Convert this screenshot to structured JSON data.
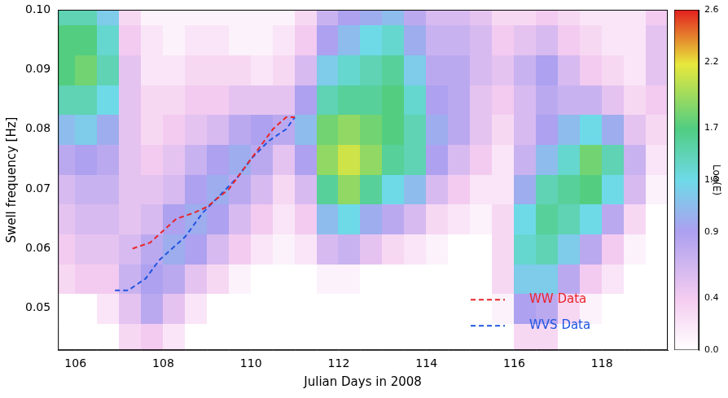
{
  "chart_data": {
    "type": "heatmap",
    "x_label": "Julian Days in 2008",
    "y_label": "Swell frequency [Hz]",
    "xlim": [
      105.6,
      119.5
    ],
    "xticks": [
      106,
      108,
      110,
      112,
      114,
      116,
      118
    ],
    "ylim": [
      0.043,
      0.1
    ],
    "yticks": [
      0.05,
      0.06,
      0.07,
      0.08,
      0.09,
      {
        "value": 0.1,
        "label": "0.10"
      }
    ],
    "grid": false,
    "legend": "lower right",
    "heatmap": {
      "x": [
        105.75,
        106.25,
        106.75,
        107.25,
        107.75,
        108.25,
        108.75,
        109.25,
        109.75,
        110.25,
        110.75,
        111.25,
        111.75,
        112.25,
        112.75,
        113.25,
        113.75,
        114.25,
        114.75,
        115.25,
        115.75,
        116.25,
        116.75,
        117.25,
        117.75,
        118.25,
        118.75,
        119.25
      ],
      "y": [
        0.045,
        0.05,
        0.055,
        0.06,
        0.065,
        0.07,
        0.075,
        0.08,
        0.085,
        0.09,
        0.095,
        0.1
      ],
      "cells": [
        [
          0,
          0,
          0,
          0.3,
          0.4,
          0.2,
          0,
          0,
          0,
          0,
          0,
          0,
          0,
          0,
          0,
          0,
          0,
          0,
          0,
          0,
          0,
          0.3,
          0.3,
          0,
          0,
          0,
          0,
          0
        ],
        [
          0,
          0,
          0.2,
          0.5,
          0.8,
          0.5,
          0.2,
          0,
          0,
          0,
          0,
          0,
          0,
          0,
          0,
          0,
          0,
          0,
          0,
          0,
          0.1,
          0.9,
          0.8,
          0.3,
          0.1,
          0,
          0,
          0
        ],
        [
          0.3,
          0.4,
          0.4,
          0.7,
          0.9,
          0.8,
          0.5,
          0.3,
          0.1,
          0,
          0,
          0,
          0.1,
          0.1,
          0,
          0,
          0,
          0,
          0,
          0,
          0.3,
          1.2,
          1.2,
          0.8,
          0.4,
          0.2,
          0,
          0
        ],
        [
          0.4,
          0.5,
          0.5,
          0.6,
          0.8,
          1.0,
          0.9,
          0.6,
          0.4,
          0.2,
          0.1,
          0.2,
          0.6,
          0.7,
          0.5,
          0.3,
          0.2,
          0.1,
          0,
          0,
          0.3,
          1.4,
          1.5,
          1.2,
          0.8,
          0.4,
          0.1,
          0
        ],
        [
          0.5,
          0.6,
          0.6,
          0.5,
          0.6,
          0.9,
          1.0,
          0.9,
          0.6,
          0.4,
          0.2,
          0.4,
          1.1,
          1.3,
          1.0,
          0.8,
          0.6,
          0.3,
          0.2,
          0.1,
          0.3,
          1.3,
          1.6,
          1.5,
          1.3,
          0.8,
          0.3,
          0
        ],
        [
          0.6,
          0.7,
          0.7,
          0.5,
          0.5,
          0.6,
          0.9,
          1.0,
          0.8,
          0.6,
          0.3,
          0.6,
          1.6,
          1.9,
          1.6,
          1.3,
          1.1,
          0.6,
          0.4,
          0.2,
          0.2,
          1.0,
          1.5,
          1.6,
          1.7,
          1.3,
          0.6,
          0.1
        ],
        [
          0.8,
          0.9,
          0.8,
          0.5,
          0.4,
          0.5,
          0.7,
          0.9,
          1.0,
          0.8,
          0.5,
          0.9,
          1.9,
          2.1,
          1.9,
          1.6,
          1.5,
          0.9,
          0.6,
          0.4,
          0.2,
          0.7,
          1.1,
          1.4,
          1.8,
          1.5,
          0.7,
          0.2
        ],
        [
          1.1,
          1.2,
          1.0,
          0.5,
          0.3,
          0.4,
          0.5,
          0.6,
          0.8,
          0.9,
          0.8,
          1.1,
          1.8,
          1.9,
          1.8,
          1.7,
          1.5,
          1.0,
          0.8,
          0.5,
          0.3,
          0.6,
          0.9,
          1.1,
          1.3,
          1.0,
          0.5,
          0.3
        ],
        [
          1.5,
          1.5,
          1.3,
          0.5,
          0.3,
          0.3,
          0.4,
          0.4,
          0.5,
          0.5,
          0.5,
          0.9,
          1.5,
          1.6,
          1.6,
          1.7,
          1.4,
          0.9,
          0.8,
          0.5,
          0.4,
          0.6,
          0.8,
          0.7,
          0.7,
          0.5,
          0.3,
          0.4
        ],
        [
          1.7,
          1.8,
          1.5,
          0.5,
          0.2,
          0.2,
          0.3,
          0.3,
          0.3,
          0.2,
          0.3,
          0.6,
          1.2,
          1.4,
          1.5,
          1.6,
          1.2,
          0.8,
          0.8,
          0.6,
          0.5,
          0.7,
          0.9,
          0.6,
          0.4,
          0.3,
          0.2,
          0.5
        ],
        [
          1.7,
          1.7,
          1.4,
          0.4,
          0.2,
          0.1,
          0.2,
          0.2,
          0.1,
          0.1,
          0.2,
          0.4,
          0.9,
          1.1,
          1.3,
          1.4,
          1.0,
          0.7,
          0.7,
          0.6,
          0.4,
          0.5,
          0.6,
          0.4,
          0.3,
          0.2,
          0.2,
          0.5
        ],
        [
          1.5,
          1.5,
          1.2,
          0.3,
          0.1,
          0.1,
          0.1,
          0.1,
          0.1,
          0.1,
          0.1,
          0.3,
          0.7,
          0.9,
          1.0,
          1.1,
          0.8,
          0.6,
          0.6,
          0.5,
          0.3,
          0.3,
          0.4,
          0.3,
          0.2,
          0.2,
          0.2,
          0.4
        ]
      ],
      "colorbar_label": "Log(E)",
      "colorbar_range": [
        0,
        2.6
      ],
      "colorbar_ticks": [
        {
          "value": 0,
          "label": "0.0"
        },
        0.4,
        0.9,
        1.3,
        1.7,
        2.2,
        2.6
      ]
    },
    "series": [
      {
        "name": "WW Data",
        "type": "line",
        "color": "#e8262a",
        "line_style": "dashed",
        "x": [
          107.3,
          107.7,
          108.0,
          108.3,
          108.7,
          109.0,
          109.5,
          109.8,
          110.2,
          110.5,
          110.8,
          111.0
        ],
        "values": [
          0.06,
          0.061,
          0.063,
          0.065,
          0.066,
          0.067,
          0.07,
          0.073,
          0.077,
          0.08,
          0.082,
          0.082
        ]
      },
      {
        "name": "WVS Data",
        "type": "line",
        "color": "#1f55e0",
        "line_style": "dashed",
        "x": [
          106.9,
          107.2,
          107.6,
          107.9,
          108.2,
          108.5,
          108.9,
          109.3,
          109.7,
          110.0,
          110.4,
          110.8,
          111.0
        ],
        "values": [
          0.053,
          0.053,
          0.055,
          0.058,
          0.06,
          0.062,
          0.066,
          0.069,
          0.072,
          0.075,
          0.078,
          0.08,
          0.082
        ]
      }
    ]
  }
}
